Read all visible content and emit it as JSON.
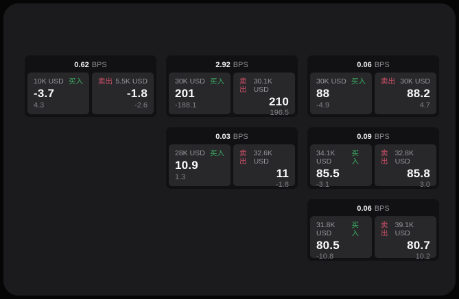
{
  "labels": {
    "bps_unit": "BPS",
    "buy": "买入",
    "sell": "卖出"
  },
  "colors": {
    "outer_background": "#060607",
    "window_background": "#1b1b1d",
    "card_background": "#111113",
    "panel_background": "#28282b",
    "buy_green": "#3cab61",
    "sell_red": "#c94f66",
    "primary_text": "#fafafa",
    "muted_text": "#98989d"
  },
  "cards": [
    {
      "bps": "0.62",
      "buy": {
        "size": "10K USD",
        "price": "-3.7",
        "delta": "4.3"
      },
      "sell": {
        "size": "5.5K USD",
        "price": "-1.8",
        "delta": "-2.6"
      }
    },
    {
      "bps": "2.92",
      "buy": {
        "size": "30K USD",
        "price": "201",
        "delta": "-188.1"
      },
      "sell": {
        "size": "30.1K USD",
        "price": "210",
        "delta": "196.5"
      }
    },
    {
      "bps": "0.06",
      "buy": {
        "size": "30K USD",
        "price": "88",
        "delta": "-4.9"
      },
      "sell": {
        "size": "30K USD",
        "price": "88.2",
        "delta": "4.7"
      }
    },
    {
      "bps": "0.03",
      "buy": {
        "size": "28K USD",
        "price": "10.9",
        "delta": "1.3"
      },
      "sell": {
        "size": "32.6K USD",
        "price": "11",
        "delta": "-1.8"
      }
    },
    {
      "bps": "0.09",
      "buy": {
        "size": "34.1K USD",
        "price": "85.5",
        "delta": "-3.1"
      },
      "sell": {
        "size": "32.8K USD",
        "price": "85.8",
        "delta": "3.0"
      }
    },
    {
      "bps": "0.06",
      "buy": {
        "size": "31.8K USD",
        "price": "80.5",
        "delta": "-10.8"
      },
      "sell": {
        "size": "39.1K USD",
        "price": "80.7",
        "delta": "10.2"
      }
    }
  ]
}
